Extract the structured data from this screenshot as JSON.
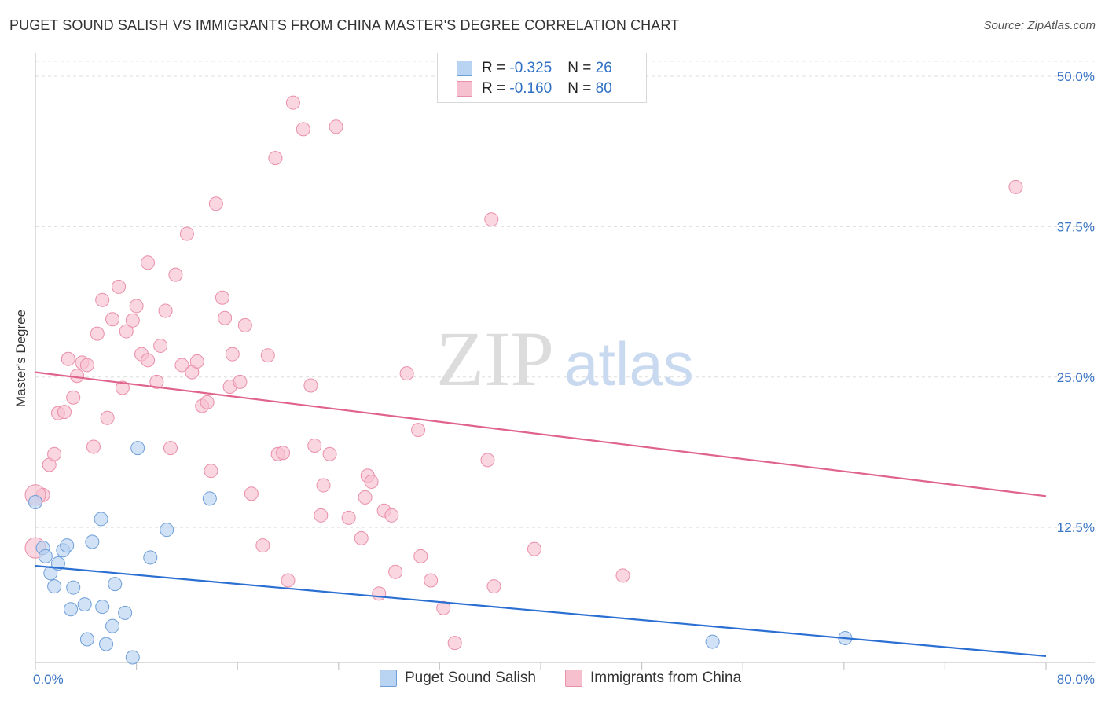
{
  "chart_data": {
    "type": "scatter",
    "title": "PUGET SOUND SALISH VS IMMIGRANTS FROM CHINA MASTER'S DEGREE CORRELATION CHART",
    "source": "Source: ZipAtlas.com",
    "ylabel": "Master's Degree",
    "xlabel": "",
    "xlim": [
      0,
      80
    ],
    "ylim": [
      0,
      52
    ],
    "x_tick_labels": [
      "0.0%",
      "80.0%"
    ],
    "y_ticks": [
      {
        "value": 12.5,
        "label": "12.5%"
      },
      {
        "value": 25.0,
        "label": "25.0%"
      },
      {
        "value": 37.5,
        "label": "37.5%"
      },
      {
        "value": 50.0,
        "label": "50.0%"
      }
    ],
    "watermark": {
      "part1": "ZIP",
      "part2": "atlas"
    },
    "series": [
      {
        "name": "Puget Sound Salish",
        "fill": "#b9d3f3",
        "stroke": "#6f9fd8",
        "line_color": "#2a6fd1",
        "stats": {
          "r_label": "R = ",
          "r": "-0.325",
          "n_label": "N = ",
          "n": "26"
        },
        "trend": [
          [
            0,
            9.3
          ],
          [
            80,
            1.8
          ]
        ],
        "points": [
          [
            0,
            14.6
          ],
          [
            0.6,
            10.8
          ],
          [
            0.8,
            10.1
          ],
          [
            1.2,
            8.7
          ],
          [
            1.5,
            7.6
          ],
          [
            1.8,
            9.5
          ],
          [
            2.2,
            10.6
          ],
          [
            2.5,
            11.0
          ],
          [
            2.8,
            5.7
          ],
          [
            3.0,
            7.5
          ],
          [
            3.9,
            6.1
          ],
          [
            4.1,
            3.2
          ],
          [
            4.5,
            11.3
          ],
          [
            5.2,
            13.2
          ],
          [
            5.3,
            5.9
          ],
          [
            5.6,
            2.8
          ],
          [
            6.1,
            4.3
          ],
          [
            6.3,
            7.8
          ],
          [
            7.1,
            5.4
          ],
          [
            7.7,
            1.7
          ],
          [
            8.1,
            19.1
          ],
          [
            9.1,
            10.0
          ],
          [
            10.4,
            12.3
          ],
          [
            13.8,
            14.9
          ],
          [
            53.6,
            3.0
          ],
          [
            64.1,
            3.3
          ]
        ]
      },
      {
        "name": "Immigrants from China",
        "fill": "#f7c0cf",
        "stroke": "#e98fa9",
        "line_color": "#e0638c",
        "stats": {
          "r_label": "R = ",
          "r": "-0.160",
          "n_label": "N = ",
          "n": "80"
        },
        "trend": [
          [
            0,
            25.4
          ],
          [
            80,
            15.1
          ]
        ],
        "points": [
          [
            0,
            10.8
          ],
          [
            0.6,
            15.2
          ],
          [
            1.1,
            17.7
          ],
          [
            1.5,
            18.6
          ],
          [
            1.8,
            22.0
          ],
          [
            2.3,
            22.1
          ],
          [
            2.6,
            26.5
          ],
          [
            3.0,
            23.3
          ],
          [
            3.3,
            25.1
          ],
          [
            3.7,
            26.2
          ],
          [
            4.1,
            26.0
          ],
          [
            4.6,
            19.2
          ],
          [
            4.9,
            28.6
          ],
          [
            5.3,
            31.4
          ],
          [
            5.7,
            21.6
          ],
          [
            6.1,
            29.8
          ],
          [
            6.6,
            32.5
          ],
          [
            6.9,
            24.1
          ],
          [
            7.2,
            28.8
          ],
          [
            7.7,
            29.7
          ],
          [
            8.0,
            30.9
          ],
          [
            8.4,
            26.9
          ],
          [
            8.9,
            26.4
          ],
          [
            8.9,
            34.5
          ],
          [
            9.6,
            24.6
          ],
          [
            9.9,
            27.6
          ],
          [
            10.3,
            30.5
          ],
          [
            10.7,
            19.1
          ],
          [
            11.1,
            33.5
          ],
          [
            11.6,
            26.0
          ],
          [
            12.0,
            36.9
          ],
          [
            12.4,
            25.4
          ],
          [
            12.8,
            26.3
          ],
          [
            13.2,
            22.6
          ],
          [
            13.6,
            22.9
          ],
          [
            13.9,
            17.2
          ],
          [
            14.3,
            39.4
          ],
          [
            14.8,
            31.6
          ],
          [
            15.0,
            29.9
          ],
          [
            15.4,
            24.2
          ],
          [
            15.6,
            26.9
          ],
          [
            16.2,
            24.6
          ],
          [
            16.6,
            29.3
          ],
          [
            17.1,
            15.3
          ],
          [
            18.0,
            11.0
          ],
          [
            18.4,
            26.8
          ],
          [
            19.0,
            43.2
          ],
          [
            19.2,
            18.6
          ],
          [
            19.6,
            18.7
          ],
          [
            20.0,
            8.1
          ],
          [
            20.4,
            47.8
          ],
          [
            21.2,
            45.6
          ],
          [
            21.8,
            24.3
          ],
          [
            22.1,
            19.3
          ],
          [
            22.6,
            13.5
          ],
          [
            22.8,
            16.0
          ],
          [
            23.3,
            18.6
          ],
          [
            23.8,
            45.8
          ],
          [
            24.8,
            13.3
          ],
          [
            25.8,
            11.6
          ],
          [
            26.1,
            15.0
          ],
          [
            26.3,
            16.8
          ],
          [
            26.6,
            16.3
          ],
          [
            27.2,
            7.0
          ],
          [
            27.6,
            13.9
          ],
          [
            28.2,
            13.5
          ],
          [
            28.5,
            8.8
          ],
          [
            29.4,
            25.3
          ],
          [
            30.3,
            20.6
          ],
          [
            30.5,
            10.1
          ],
          [
            31.3,
            8.1
          ],
          [
            32.3,
            5.8
          ],
          [
            33.2,
            2.9
          ],
          [
            35.8,
            18.1
          ],
          [
            36.1,
            38.1
          ],
          [
            36.3,
            7.6
          ],
          [
            39.5,
            10.7
          ],
          [
            46.5,
            8.5
          ],
          [
            77.6,
            40.8
          ],
          [
            0,
            15.2
          ]
        ]
      }
    ],
    "legend_position": "top-center"
  }
}
